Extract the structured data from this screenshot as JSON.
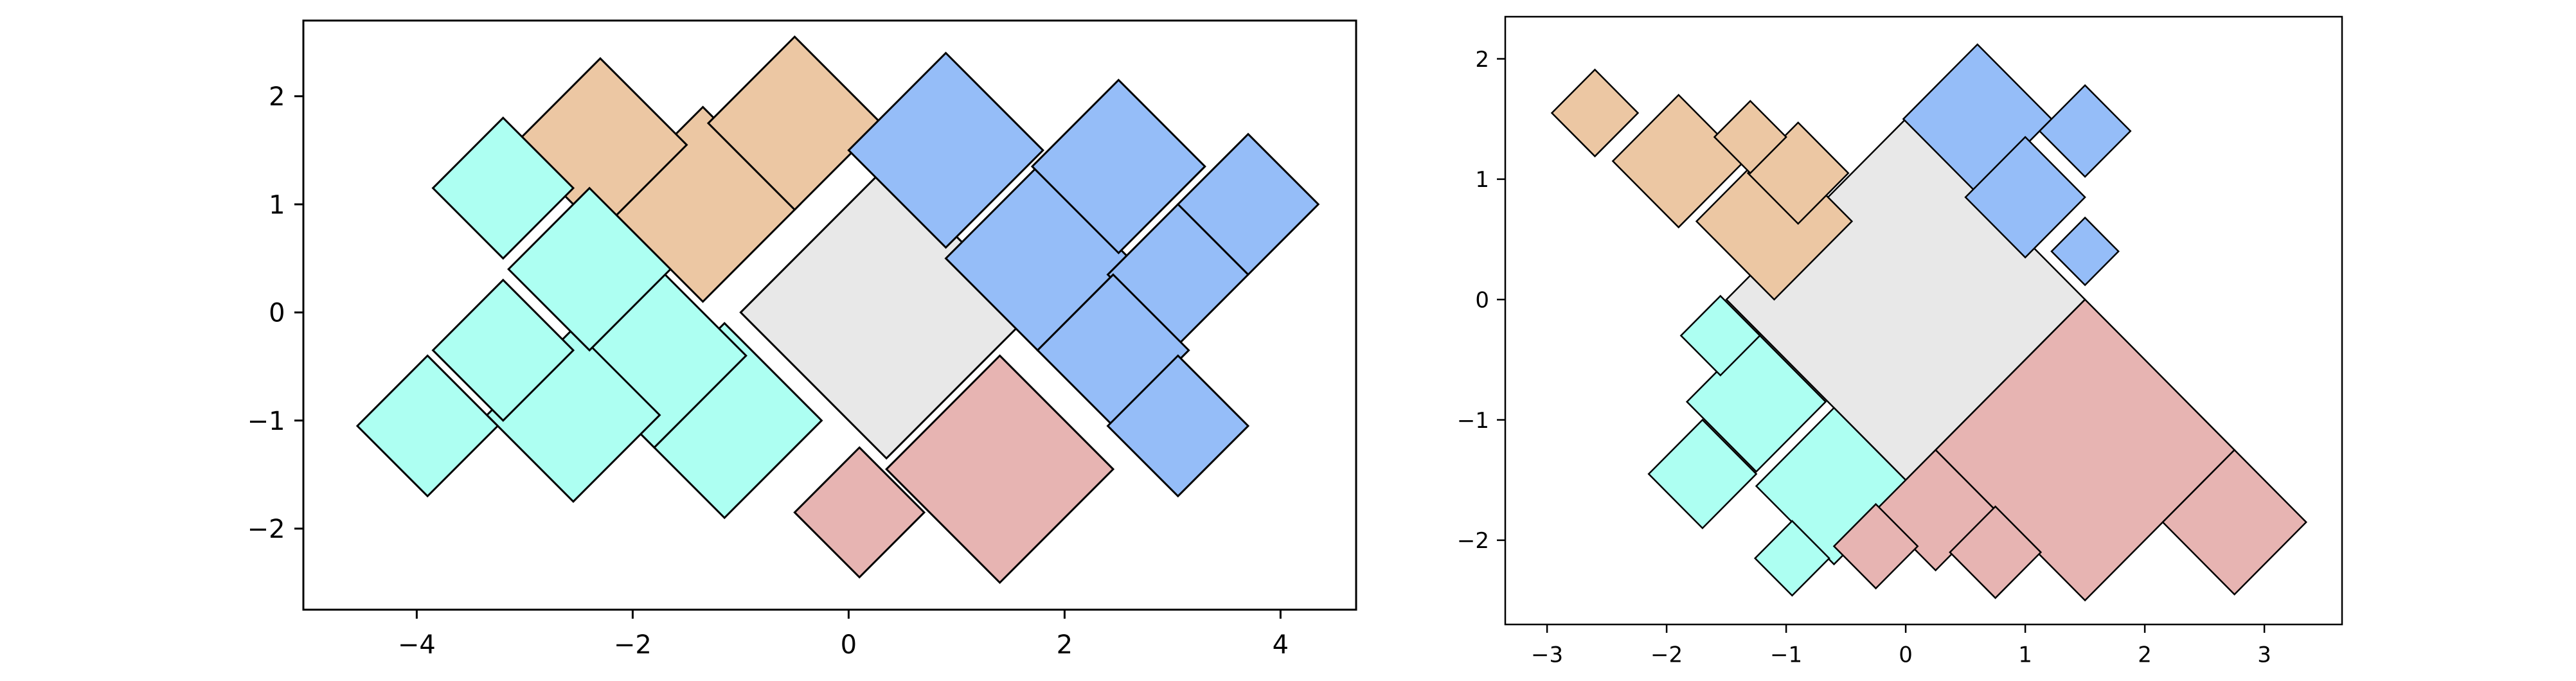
{
  "colors": {
    "central": "#e8e8e8",
    "orange": "#ecc7a3",
    "blue": "#95bdf8",
    "cyan": "#adfff2",
    "pink": "#e7b4b2"
  },
  "chart_data": [
    {
      "type": "polygon-tiling",
      "title": "",
      "xlabel": "",
      "ylabel": "",
      "xlim": [
        -5.05,
        4.7
      ],
      "ylim": [
        -2.75,
        2.7
      ],
      "xticks": [
        -4,
        -2,
        0,
        2,
        4
      ],
      "yticks": [
        -2,
        -1,
        0,
        1,
        2
      ],
      "xtick_labels": [
        "−4",
        "−2",
        "0",
        "2",
        "4"
      ],
      "ytick_labels": [
        "−2",
        "−1",
        "0",
        "1",
        "2"
      ],
      "grid": false,
      "squares": [
        {
          "group": "central",
          "center": [
            0.35,
            0.0
          ],
          "half_diagonal": 1.35
        },
        {
          "group": "orange",
          "center": [
            -1.35,
            1.0
          ],
          "half_diagonal": 0.9
        },
        {
          "group": "orange",
          "center": [
            -2.3,
            1.55
          ],
          "half_diagonal": 0.8
        },
        {
          "group": "orange",
          "center": [
            -0.5,
            1.75
          ],
          "half_diagonal": 0.8
        },
        {
          "group": "blue",
          "center": [
            0.9,
            1.5
          ],
          "half_diagonal": 0.9
        },
        {
          "group": "blue",
          "center": [
            1.75,
            0.5
          ],
          "half_diagonal": 0.85
        },
        {
          "group": "blue",
          "center": [
            2.5,
            1.35
          ],
          "half_diagonal": 0.8
        },
        {
          "group": "blue",
          "center": [
            3.7,
            1.0
          ],
          "half_diagonal": 0.65
        },
        {
          "group": "blue",
          "center": [
            3.05,
            0.35
          ],
          "half_diagonal": 0.65
        },
        {
          "group": "blue",
          "center": [
            2.45,
            -0.35
          ],
          "half_diagonal": 0.7
        },
        {
          "group": "blue",
          "center": [
            3.05,
            -1.05
          ],
          "half_diagonal": 0.65
        },
        {
          "group": "cyan",
          "center": [
            -1.15,
            -1.0
          ],
          "half_diagonal": 0.9
        },
        {
          "group": "cyan",
          "center": [
            -1.8,
            -0.4
          ],
          "half_diagonal": 0.85
        },
        {
          "group": "cyan",
          "center": [
            -2.55,
            -0.95
          ],
          "half_diagonal": 0.8
        },
        {
          "group": "cyan",
          "center": [
            -2.4,
            0.4
          ],
          "half_diagonal": 0.75
        },
        {
          "group": "cyan",
          "center": [
            -3.2,
            1.15
          ],
          "half_diagonal": 0.65
        },
        {
          "group": "cyan",
          "center": [
            -3.2,
            -0.35
          ],
          "half_diagonal": 0.65
        },
        {
          "group": "cyan",
          "center": [
            -3.9,
            -1.05
          ],
          "half_diagonal": 0.65
        },
        {
          "group": "pink",
          "center": [
            1.4,
            -1.45
          ],
          "half_diagonal": 1.05
        },
        {
          "group": "pink",
          "center": [
            0.1,
            -1.85
          ],
          "half_diagonal": 0.6
        }
      ]
    },
    {
      "type": "polygon-tiling",
      "title": "",
      "xlabel": "",
      "ylabel": "",
      "xlim": [
        -3.35,
        3.65
      ],
      "ylim": [
        -2.7,
        2.35
      ],
      "xticks": [
        -3,
        -2,
        -1,
        0,
        1,
        2,
        3
      ],
      "yticks": [
        -2,
        -1,
        0,
        1,
        2
      ],
      "xtick_labels": [
        "−3",
        "−2",
        "−1",
        "0",
        "1",
        "2",
        "3"
      ],
      "ytick_labels": [
        "−2",
        "−1",
        "0",
        "1",
        "2"
      ],
      "grid": false,
      "squares": [
        {
          "group": "central",
          "center": [
            0.0,
            0.0
          ],
          "half_diagonal": 1.5
        },
        {
          "group": "orange",
          "center": [
            -1.1,
            0.65
          ],
          "half_diagonal": 0.65
        },
        {
          "group": "orange",
          "center": [
            -1.9,
            1.15
          ],
          "half_diagonal": 0.55
        },
        {
          "group": "orange",
          "center": [
            -0.9,
            1.05
          ],
          "half_diagonal": 0.42
        },
        {
          "group": "orange",
          "center": [
            -1.3,
            1.35
          ],
          "half_diagonal": 0.3
        },
        {
          "group": "orange",
          "center": [
            -2.6,
            1.55
          ],
          "half_diagonal": 0.36
        },
        {
          "group": "blue",
          "center": [
            0.6,
            1.5
          ],
          "half_diagonal": 0.62
        },
        {
          "group": "blue",
          "center": [
            1.0,
            0.85
          ],
          "half_diagonal": 0.5
        },
        {
          "group": "blue",
          "center": [
            1.5,
            1.4
          ],
          "half_diagonal": 0.38
        },
        {
          "group": "blue",
          "center": [
            1.5,
            0.4
          ],
          "half_diagonal": 0.28
        },
        {
          "group": "cyan",
          "center": [
            -0.6,
            -1.55
          ],
          "half_diagonal": 0.65
        },
        {
          "group": "cyan",
          "center": [
            -1.25,
            -0.85
          ],
          "half_diagonal": 0.58
        },
        {
          "group": "cyan",
          "center": [
            -1.55,
            -0.3
          ],
          "half_diagonal": 0.33
        },
        {
          "group": "cyan",
          "center": [
            -1.7,
            -1.45
          ],
          "half_diagonal": 0.45
        },
        {
          "group": "cyan",
          "center": [
            -0.95,
            -2.15
          ],
          "half_diagonal": 0.31
        },
        {
          "group": "pink",
          "center": [
            1.5,
            -1.25
          ],
          "half_diagonal": 1.25
        },
        {
          "group": "pink",
          "center": [
            0.25,
            -1.75
          ],
          "half_diagonal": 0.5
        },
        {
          "group": "pink",
          "center": [
            0.75,
            -2.1
          ],
          "half_diagonal": 0.38
        },
        {
          "group": "pink",
          "center": [
            -0.25,
            -2.05
          ],
          "half_diagonal": 0.35
        },
        {
          "group": "pink",
          "center": [
            2.75,
            -1.85
          ],
          "half_diagonal": 0.6
        }
      ]
    }
  ]
}
